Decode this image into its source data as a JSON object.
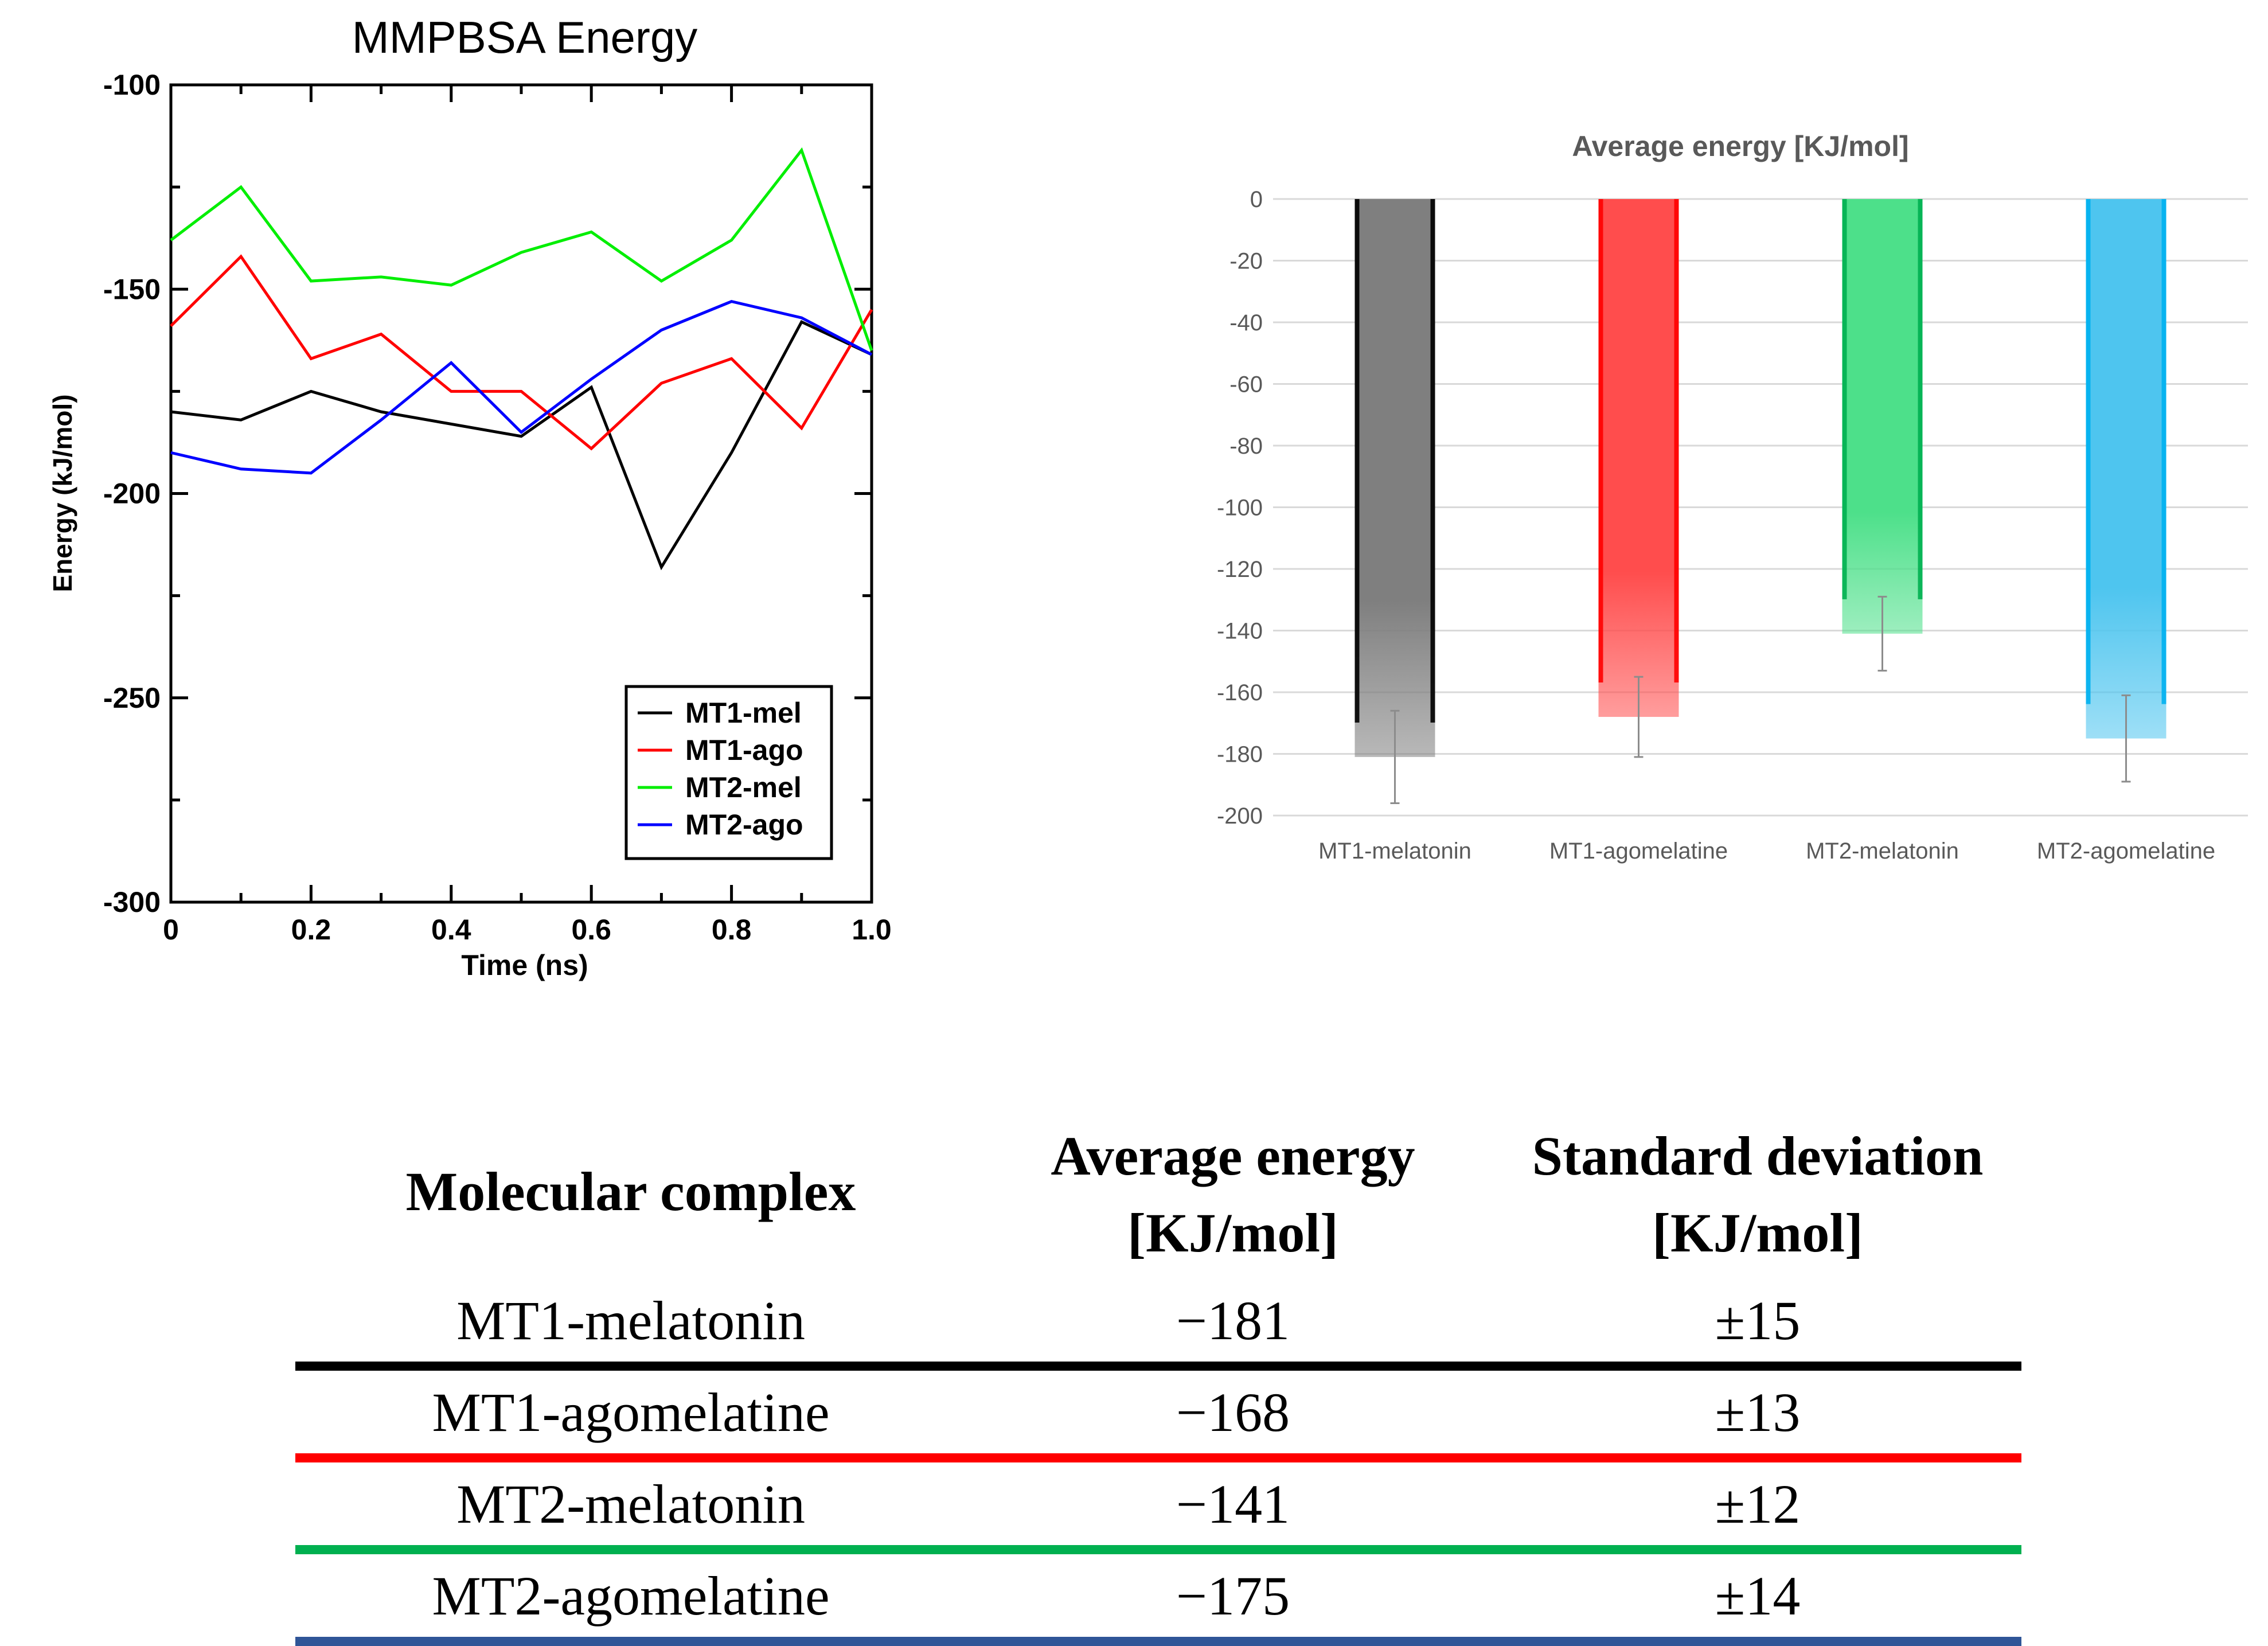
{
  "chart_data": [
    {
      "type": "line",
      "title": "MMPBSA Energy",
      "xlabel": "Time (ns)",
      "ylabel": "Energy (kJ/mol)",
      "xlim": [
        0,
        1.0
      ],
      "ylim": [
        -300,
        -100
      ],
      "xticks": [
        0,
        0.2,
        0.4,
        0.6,
        0.8,
        1.0
      ],
      "xtick_labels": [
        "0",
        "0.2",
        "0.4",
        "0.6",
        "0.8",
        "1.0"
      ],
      "yticks": [
        -100,
        -150,
        -200,
        -250,
        -300
      ],
      "ytick_labels": [
        "-100",
        "-150",
        "-200",
        "-250",
        "-300"
      ],
      "legend_position": "bottom-right",
      "x": [
        0,
        0.1,
        0.2,
        0.3,
        0.4,
        0.5,
        0.6,
        0.7,
        0.8,
        0.9,
        1.0
      ],
      "series": [
        {
          "name": "MT1-mel",
          "color": "#000000",
          "values": [
            -180,
            -182,
            -175,
            -180,
            -183,
            -186,
            -174,
            -218,
            -190,
            -158,
            -166
          ]
        },
        {
          "name": "MT1-ago",
          "color": "#ff0000",
          "values": [
            -159,
            -142,
            -167,
            -161,
            -175,
            -175,
            -189,
            -173,
            -167,
            -184,
            -155
          ]
        },
        {
          "name": "MT2-mel",
          "color": "#00ee00",
          "values": [
            -138,
            -125,
            -148,
            -147,
            -149,
            -141,
            -136,
            -148,
            -138,
            -116,
            -165
          ]
        },
        {
          "name": "MT2-ago",
          "color": "#0000ff",
          "values": [
            -190,
            -194,
            -195,
            -182,
            -168,
            -185,
            -172,
            -160,
            -153,
            -157,
            -166
          ]
        }
      ]
    },
    {
      "type": "bar",
      "title": "Average energy [KJ/mol]",
      "categories": [
        "MT1-melatonin",
        "MT1-agomelatine",
        "MT2-melatonin",
        "MT2-agomelatine"
      ],
      "values": [
        -181,
        -168,
        -141,
        -175
      ],
      "errors": [
        15,
        13,
        12,
        14
      ],
      "colors": [
        "#7f7f7f",
        "#ff4d4d",
        "#4de08a",
        "#4ec5ef"
      ],
      "edge_colors": [
        "#000000",
        "#ff0000",
        "#00b050",
        "#00b0f0"
      ],
      "ylim": [
        -200,
        0
      ],
      "yticks": [
        0,
        -20,
        -40,
        -60,
        -80,
        -100,
        -120,
        -140,
        -160,
        -180,
        -200
      ],
      "ytick_labels": [
        "0",
        "-20",
        "-40",
        "-60",
        "-80",
        "-100",
        "-120",
        "-140",
        "-160",
        "-180",
        "-200"
      ]
    },
    {
      "type": "table",
      "headers": [
        [
          "Molecular complex"
        ],
        [
          "Average energy",
          "[KJ/mol]"
        ],
        [
          "Standard deviation",
          "[KJ/mol]"
        ]
      ],
      "rows": [
        {
          "complex": "MT1-melatonin",
          "energy": "−181",
          "sd": "±15",
          "line_color": "#000000"
        },
        {
          "complex": "MT1-agomelatine",
          "energy": "−168",
          "sd": "±13",
          "line_color": "#ff0000"
        },
        {
          "complex": "MT2-melatonin",
          "energy": "−141",
          "sd": "±12",
          "line_color": "#00b050"
        },
        {
          "complex": "MT2-agomelatine",
          "energy": "−175",
          "sd": "±14",
          "line_color": "#2f5597"
        }
      ]
    }
  ]
}
